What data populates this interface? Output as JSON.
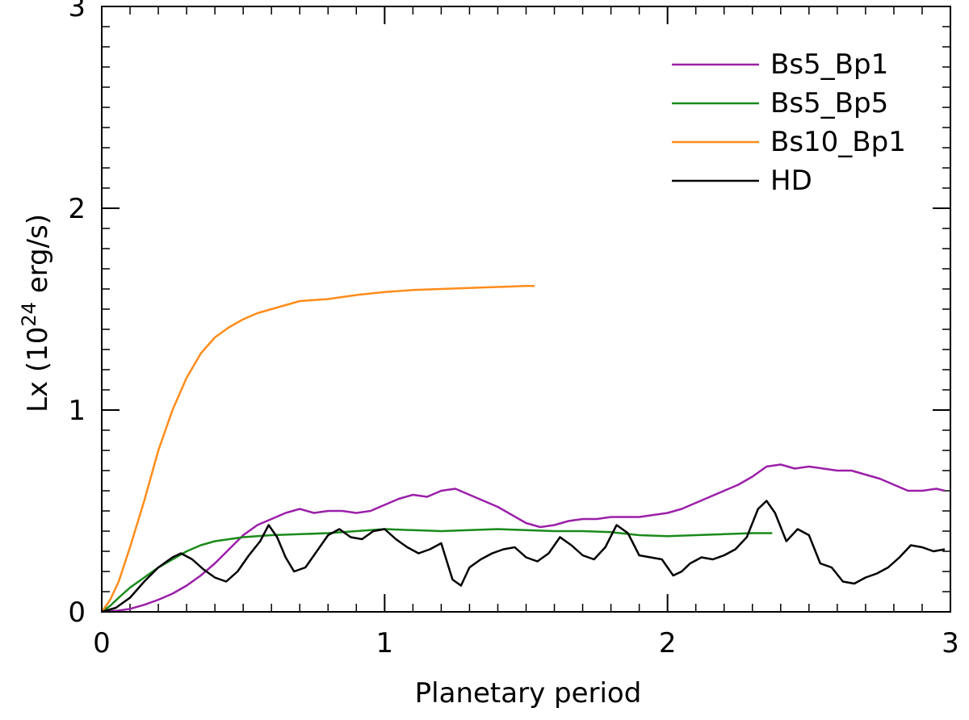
{
  "chart_data": {
    "type": "line",
    "title": "",
    "xlabel": "Planetary period",
    "ylabel": "Lx (10",
    "ylabel_superscript": "24",
    "ylabel_suffix": " erg/s)",
    "xlim": [
      0,
      3
    ],
    "ylim": [
      0,
      3
    ],
    "xticks": [
      0,
      1,
      2,
      3
    ],
    "yticks": [
      0,
      1,
      2,
      3
    ],
    "x_minor_step": 0.1,
    "y_minor_step": 0.1,
    "grid": false,
    "legend_position": "top-right",
    "series": [
      {
        "name": "Bs5_Bp1",
        "color": "#9b1fa8",
        "x": [
          0,
          0.05,
          0.1,
          0.15,
          0.2,
          0.25,
          0.3,
          0.35,
          0.4,
          0.45,
          0.5,
          0.55,
          0.6,
          0.65,
          0.7,
          0.75,
          0.8,
          0.85,
          0.9,
          0.95,
          1.0,
          1.05,
          1.1,
          1.15,
          1.2,
          1.25,
          1.3,
          1.35,
          1.4,
          1.45,
          1.5,
          1.55,
          1.6,
          1.65,
          1.7,
          1.75,
          1.8,
          1.85,
          1.9,
          1.95,
          2.0,
          2.05,
          2.1,
          2.15,
          2.2,
          2.25,
          2.3,
          2.35,
          2.4,
          2.45,
          2.5,
          2.55,
          2.6,
          2.65,
          2.7,
          2.75,
          2.8,
          2.85,
          2.9,
          2.95,
          2.98
        ],
        "values": [
          0,
          0.005,
          0.015,
          0.035,
          0.06,
          0.09,
          0.13,
          0.18,
          0.24,
          0.31,
          0.38,
          0.43,
          0.46,
          0.49,
          0.51,
          0.49,
          0.5,
          0.5,
          0.49,
          0.5,
          0.53,
          0.56,
          0.58,
          0.57,
          0.6,
          0.61,
          0.58,
          0.55,
          0.52,
          0.48,
          0.44,
          0.42,
          0.43,
          0.45,
          0.46,
          0.46,
          0.47,
          0.47,
          0.47,
          0.48,
          0.49,
          0.51,
          0.54,
          0.57,
          0.6,
          0.63,
          0.67,
          0.72,
          0.73,
          0.71,
          0.72,
          0.71,
          0.7,
          0.7,
          0.68,
          0.66,
          0.63,
          0.6,
          0.6,
          0.61,
          0.6
        ]
      },
      {
        "name": "Bs5_Bp5",
        "color": "#1a8a1a",
        "x": [
          0,
          0.03,
          0.06,
          0.1,
          0.15,
          0.2,
          0.25,
          0.3,
          0.35,
          0.4,
          0.5,
          0.6,
          0.7,
          0.8,
          0.9,
          1.0,
          1.1,
          1.2,
          1.3,
          1.4,
          1.5,
          1.6,
          1.7,
          1.8,
          1.9,
          2.0,
          2.1,
          2.2,
          2.3,
          2.37
        ],
        "values": [
          0,
          0.03,
          0.07,
          0.12,
          0.17,
          0.22,
          0.26,
          0.3,
          0.33,
          0.35,
          0.37,
          0.38,
          0.385,
          0.39,
          0.4,
          0.41,
          0.405,
          0.4,
          0.405,
          0.41,
          0.405,
          0.4,
          0.4,
          0.395,
          0.38,
          0.375,
          0.38,
          0.385,
          0.39,
          0.39
        ]
      },
      {
        "name": "Bs10_Bp1",
        "color": "#ff8c1a",
        "x": [
          0,
          0.03,
          0.06,
          0.1,
          0.15,
          0.2,
          0.25,
          0.3,
          0.35,
          0.4,
          0.45,
          0.5,
          0.55,
          0.6,
          0.65,
          0.7,
          0.8,
          0.9,
          1.0,
          1.1,
          1.2,
          1.3,
          1.4,
          1.5,
          1.53
        ],
        "values": [
          0,
          0.06,
          0.15,
          0.32,
          0.55,
          0.8,
          1.0,
          1.16,
          1.28,
          1.36,
          1.41,
          1.45,
          1.48,
          1.5,
          1.52,
          1.54,
          1.55,
          1.57,
          1.585,
          1.595,
          1.6,
          1.605,
          1.61,
          1.615,
          1.615
        ]
      },
      {
        "name": "HD",
        "color": "#000000",
        "x": [
          0,
          0.05,
          0.1,
          0.15,
          0.2,
          0.25,
          0.28,
          0.32,
          0.36,
          0.4,
          0.44,
          0.48,
          0.52,
          0.56,
          0.59,
          0.62,
          0.65,
          0.68,
          0.72,
          0.76,
          0.8,
          0.84,
          0.88,
          0.92,
          0.96,
          1.0,
          1.04,
          1.08,
          1.12,
          1.16,
          1.2,
          1.24,
          1.27,
          1.3,
          1.34,
          1.38,
          1.42,
          1.46,
          1.5,
          1.54,
          1.58,
          1.62,
          1.66,
          1.7,
          1.74,
          1.78,
          1.82,
          1.86,
          1.9,
          1.94,
          1.98,
          2.02,
          2.05,
          2.08,
          2.12,
          2.16,
          2.2,
          2.24,
          2.28,
          2.32,
          2.35,
          2.38,
          2.42,
          2.46,
          2.5,
          2.54,
          2.58,
          2.62,
          2.66,
          2.7,
          2.74,
          2.78,
          2.82,
          2.86,
          2.9,
          2.94,
          2.98
        ],
        "values": [
          0,
          0.02,
          0.07,
          0.15,
          0.22,
          0.27,
          0.29,
          0.26,
          0.21,
          0.17,
          0.15,
          0.2,
          0.28,
          0.35,
          0.43,
          0.37,
          0.27,
          0.2,
          0.22,
          0.3,
          0.38,
          0.41,
          0.37,
          0.36,
          0.4,
          0.41,
          0.36,
          0.32,
          0.29,
          0.31,
          0.34,
          0.16,
          0.13,
          0.22,
          0.26,
          0.29,
          0.31,
          0.32,
          0.27,
          0.25,
          0.29,
          0.37,
          0.33,
          0.28,
          0.26,
          0.32,
          0.43,
          0.39,
          0.28,
          0.27,
          0.26,
          0.18,
          0.2,
          0.24,
          0.27,
          0.26,
          0.28,
          0.31,
          0.37,
          0.51,
          0.55,
          0.49,
          0.35,
          0.41,
          0.38,
          0.24,
          0.22,
          0.15,
          0.14,
          0.17,
          0.19,
          0.22,
          0.27,
          0.33,
          0.32,
          0.3,
          0.31
        ]
      }
    ]
  }
}
